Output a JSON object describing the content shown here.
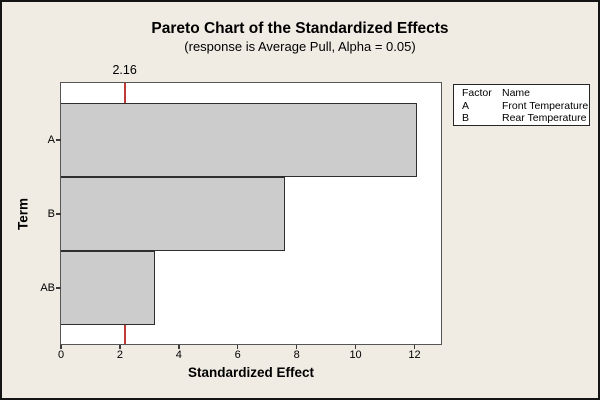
{
  "chart_data": {
    "type": "bar",
    "orientation": "horizontal",
    "title": "Pareto Chart of the Standardized Effects",
    "subtitle": "(response is Average Pull, Alpha = 0.05)",
    "xlabel": "Standardized Effect",
    "ylabel": "Term",
    "categories": [
      "A",
      "B",
      "AB"
    ],
    "values": [
      12.1,
      7.6,
      3.2
    ],
    "reference_line": 2.16,
    "reference_label": "2.16",
    "xlim": [
      0,
      12.9
    ],
    "xticks": [
      0,
      2,
      4,
      6,
      8,
      10,
      12
    ],
    "grid": false,
    "legend_position": "top-right",
    "legend_table": {
      "headers": [
        "Factor",
        "Name"
      ],
      "rows": [
        [
          "A",
          "Front Temperature"
        ],
        [
          "B",
          "Rear Temperature"
        ]
      ]
    },
    "colors": {
      "background": "#f0ebe3",
      "plot_background": "#ffffff",
      "plot_border": "#565656",
      "bar_fill": "#cccccc",
      "bar_border": "#2e2e2e",
      "reference_line": "#bf3a36",
      "text": "#000000"
    }
  }
}
